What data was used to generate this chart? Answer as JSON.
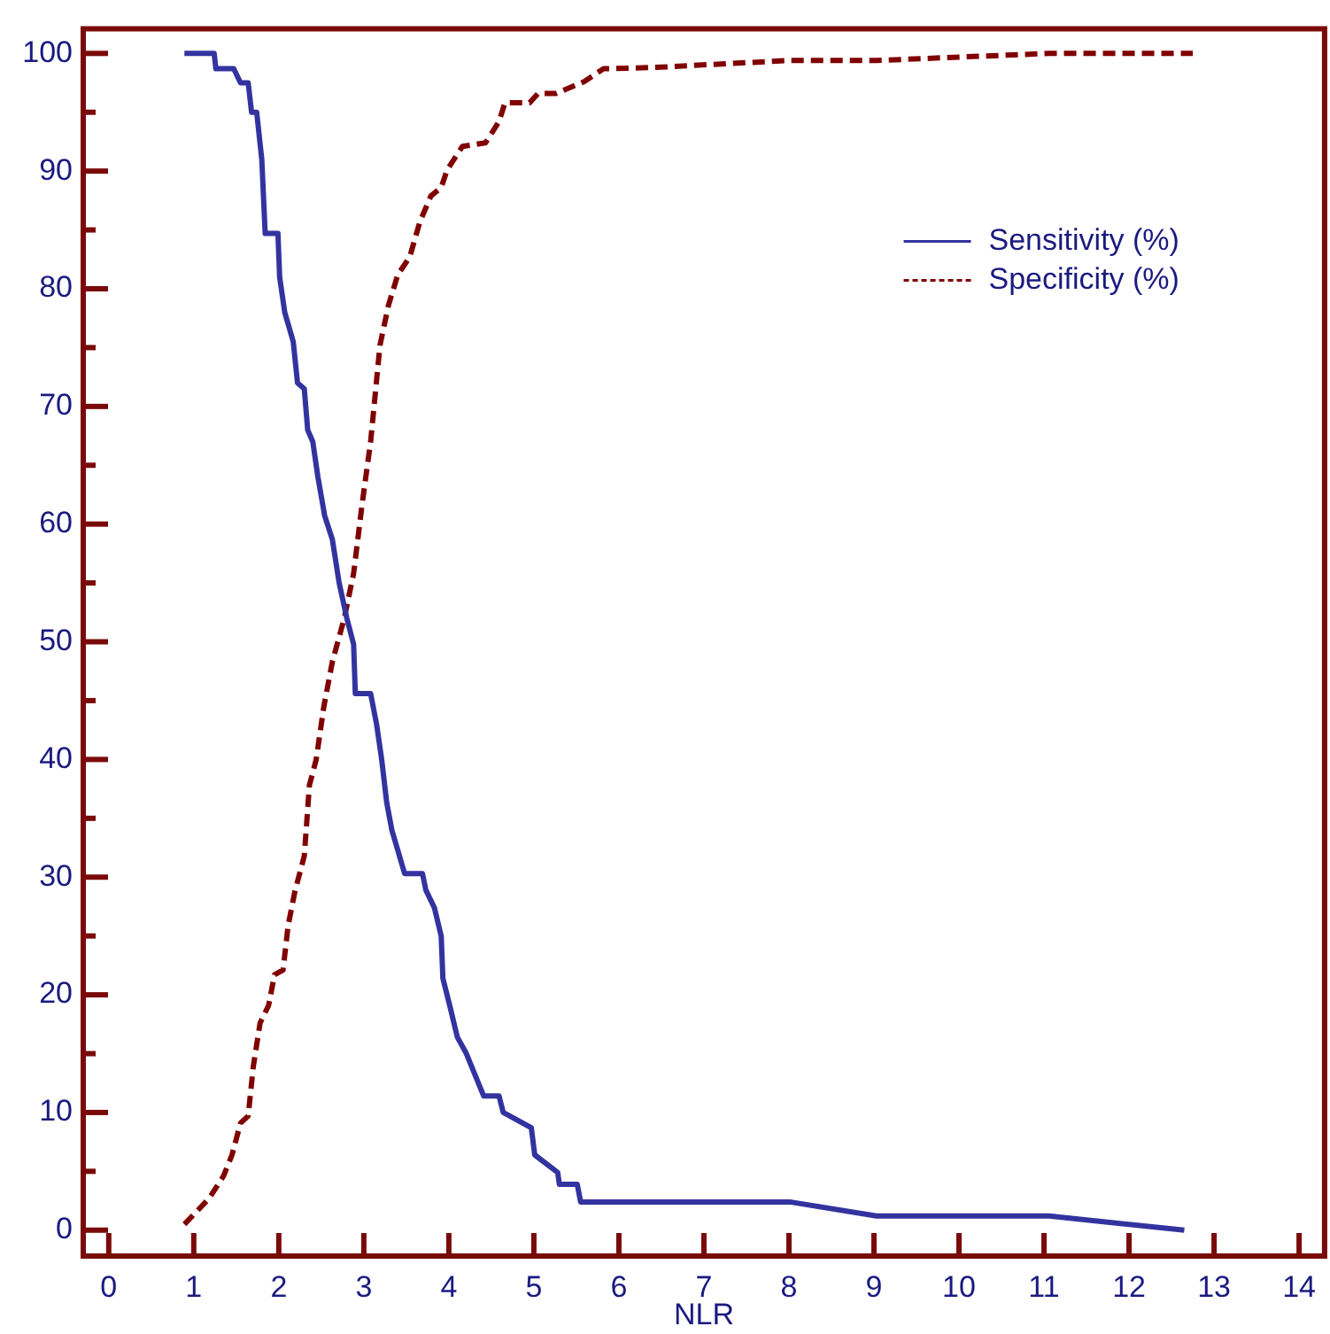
{
  "chart_data": {
    "type": "line",
    "xlabel": "NLR",
    "xlim": [
      -0.3,
      14.3
    ],
    "xticks": [
      0,
      1,
      2,
      3,
      4,
      5,
      6,
      7,
      8,
      9,
      10,
      11,
      12,
      13,
      14
    ],
    "ylim": [
      -2.2,
      102.1
    ],
    "yticks": [
      0,
      {
        "value": 5,
        "label": null
      },
      10,
      {
        "value": 15,
        "label": null
      },
      20,
      {
        "value": 25,
        "label": null
      },
      30,
      {
        "value": 35,
        "label": null
      },
      40,
      {
        "value": 45,
        "label": null
      },
      50,
      {
        "value": 55,
        "label": null
      },
      60,
      {
        "value": 65,
        "label": null
      },
      70,
      {
        "value": 75,
        "label": null
      },
      80,
      {
        "value": 85,
        "label": null
      },
      90,
      {
        "value": 95,
        "label": null
      },
      100
    ],
    "grid": false,
    "legend": "top right",
    "marker": "none",
    "series": [
      {
        "name": "Sensitivity (%)",
        "color": "#3333a0",
        "line_style": "solid",
        "x": [
          0.89,
          1.24,
          1.26,
          1.47,
          1.55,
          1.64,
          1.68,
          1.74,
          1.8,
          1.84,
          1.99,
          2.01,
          2.07,
          2.11,
          2.17,
          2.22,
          2.3,
          2.34,
          2.4,
          2.46,
          2.54,
          2.63,
          2.71,
          2.8,
          2.88,
          2.9,
          3.08,
          3.15,
          3.21,
          3.27,
          3.33,
          3.48,
          3.69,
          3.73,
          3.83,
          3.91,
          3.93,
          4.01,
          4.1,
          4.2,
          4.41,
          4.59,
          4.64,
          4.97,
          5.01,
          5.28,
          5.3,
          5.51,
          5.55,
          8.01,
          9.03,
          11.06,
          12.65
        ],
        "values": [
          100,
          100,
          98.7,
          98.7,
          97.5,
          97.5,
          95,
          95,
          91,
          84.7,
          84.7,
          81,
          78,
          77,
          75.5,
          72,
          71.5,
          68,
          67,
          64,
          60.7,
          58.7,
          55,
          52,
          49.8,
          45.6,
          45.6,
          43,
          40,
          36.3,
          34,
          30.3,
          30.3,
          28.9,
          27.4,
          25,
          21.4,
          19.1,
          16.4,
          15.1,
          11.4,
          11.4,
          10,
          8.7,
          6.4,
          4.9,
          3.9,
          3.9,
          2.4,
          2.4,
          1.2,
          1.2,
          0
        ]
      },
      {
        "name": "Specificity (%)",
        "color": "#800000",
        "line_style": "dashed",
        "x": [
          0.89,
          1.18,
          1.35,
          1.45,
          1.55,
          1.64,
          1.7,
          1.78,
          1.88,
          1.95,
          2.05,
          2.11,
          2.19,
          2.3,
          2.36,
          2.44,
          2.53,
          2.63,
          2.77,
          2.88,
          2.98,
          3.08,
          3.19,
          3.29,
          3.4,
          3.54,
          3.66,
          3.79,
          3.91,
          3.98,
          4.16,
          4.43,
          4.59,
          4.66,
          4.95,
          5.05,
          5.26,
          5.59,
          5.82,
          6.4,
          8.01,
          9.03,
          11.06,
          12.75
        ],
        "values": [
          0.5,
          2.7,
          4.6,
          6.4,
          9.1,
          9.7,
          13.9,
          17.6,
          19.1,
          21.7,
          22.1,
          25.9,
          28.8,
          31.8,
          37.8,
          40,
          44.5,
          48.3,
          52,
          55.8,
          61.7,
          67,
          75.2,
          78.6,
          81.2,
          82.7,
          85.7,
          87.9,
          88.6,
          90.1,
          92.1,
          92.4,
          94.2,
          95.8,
          95.8,
          96.6,
          96.6,
          97.6,
          98.7,
          98.8,
          99.4,
          99.4,
          100,
          100
        ]
      }
    ]
  }
}
